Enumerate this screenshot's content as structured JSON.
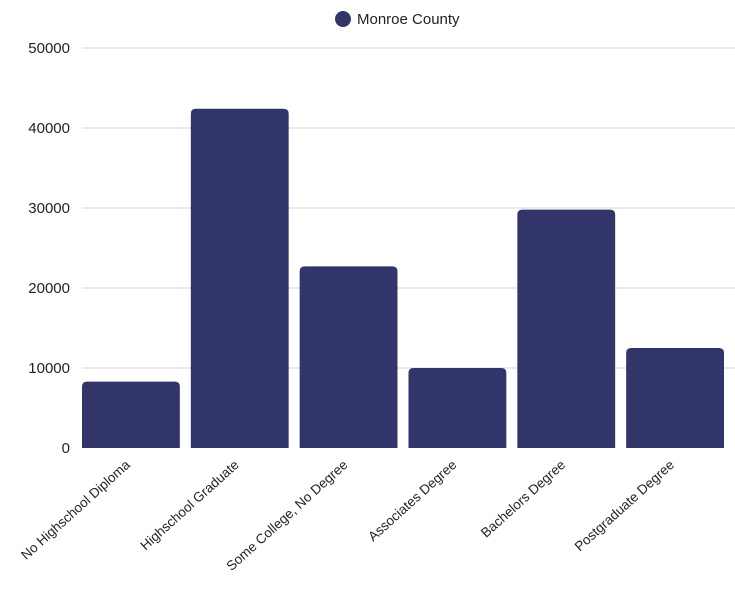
{
  "chart_data": {
    "type": "bar",
    "categories": [
      "No Highschool Diploma",
      "Highschool Graduate",
      "Some College, No Degree",
      "Associates Degree",
      "Bachelors Degree",
      "Postgraduate Degree"
    ],
    "series": [
      {
        "name": "Monroe County",
        "values": [
          8300,
          42400,
          22700,
          10000,
          29800,
          12500
        ],
        "color": "#313569"
      }
    ],
    "ylim": [
      0,
      50000
    ],
    "yticks": [
      "0",
      "10000",
      "20000",
      "30000",
      "40000",
      "50000"
    ],
    "grid": true,
    "legend_position": "top-center",
    "title": "",
    "xlabel": "",
    "ylabel": ""
  }
}
